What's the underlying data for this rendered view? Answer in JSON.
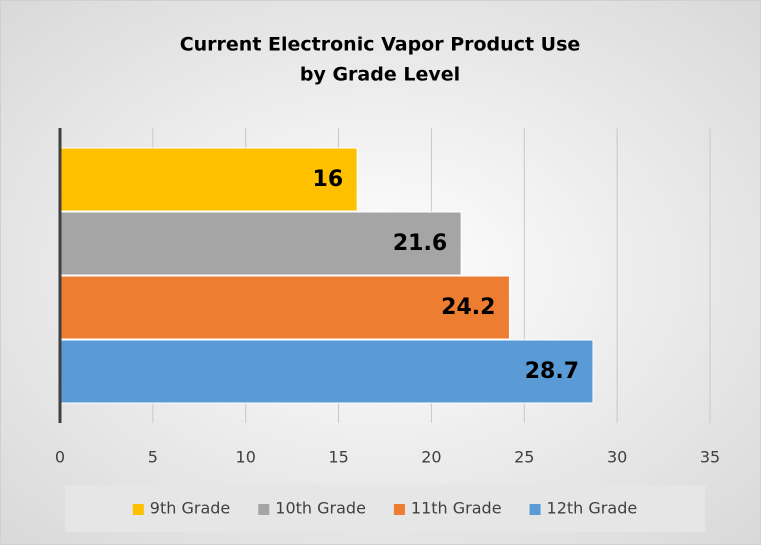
{
  "chart_data": {
    "type": "bar",
    "orientation": "horizontal",
    "title": [
      "Current Electronic Vapor Product Use",
      "by Grade Level"
    ],
    "series": [
      {
        "name": "9th Grade",
        "color": "#ffc000",
        "values": [
          16
        ]
      },
      {
        "name": "10th Grade",
        "color": "#a5a5a5",
        "values": [
          21.6
        ]
      },
      {
        "name": "11th Grade",
        "color": "#ed7d31",
        "values": [
          24.2
        ]
      },
      {
        "name": "12th Grade",
        "color": "#5b9bd5",
        "values": [
          28.7
        ]
      }
    ],
    "xlim": [
      0,
      35
    ],
    "xticks": [
      0,
      5,
      10,
      15,
      20,
      25,
      30,
      35
    ],
    "grid": true,
    "legend": "bottom"
  }
}
